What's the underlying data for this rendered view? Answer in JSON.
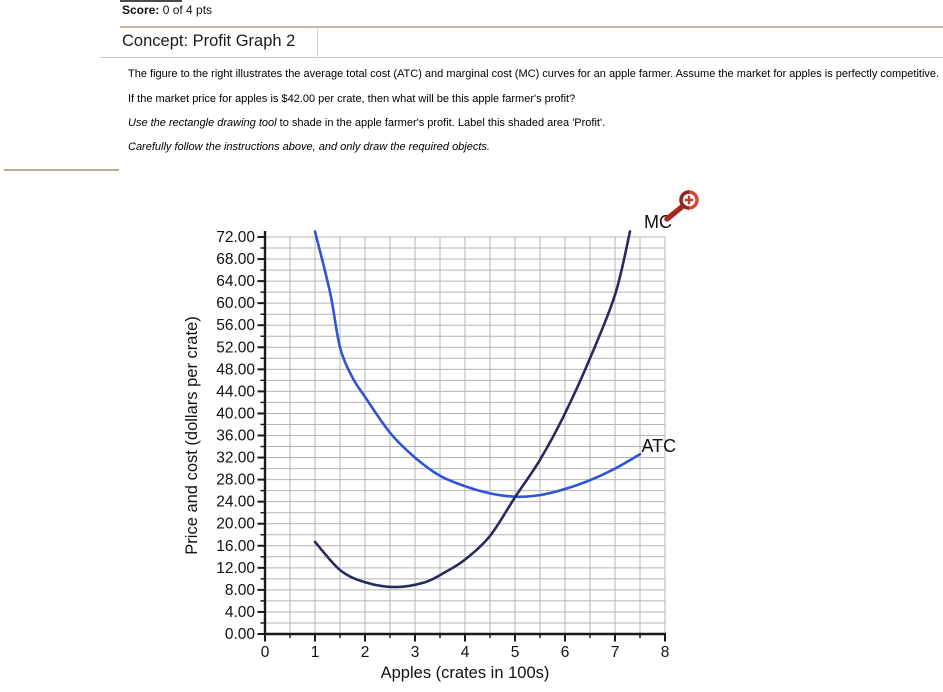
{
  "header": {
    "score_label": "Score:",
    "score_value": " 0 of 4 pts",
    "concept_title": "Concept: Profit Graph 2"
  },
  "question": {
    "line1": "The figure to the right illustrates the average total cost (ATC) and marginal cost (MC) curves for an apple farmer. Assume the market for apples is perfectly competitive.",
    "line2": "If the market price for apples is $42.00 per crate, then what will be this apple farmer's profit?",
    "line3_italic": "Use the rectangle drawing tool",
    "line3_rest": " to shade in the apple farmer's profit. Label this shaded area 'Profit'.",
    "line4": "Carefully follow the instructions above, and only draw the required objects."
  },
  "chart_data": {
    "type": "line",
    "title": "",
    "xlabel": "Apples (crates in 100s)",
    "ylabel": "Price and cost (dollars per crate)",
    "xlim": [
      0,
      8
    ],
    "ylim": [
      0,
      72
    ],
    "x_major_step": 1,
    "x_minor_step": 0.5,
    "y_major_step": 4,
    "y_minor_step": 2,
    "y_tick_decimals": 2,
    "grid": true,
    "legend_position": "none",
    "colors": {
      "grid": "#b4b4b4",
      "axis": "#1a1a1a",
      "tick_label": "#111111",
      "curve_label": "#111111"
    },
    "series": [
      {
        "name": "ATC",
        "color": "#2d55d4",
        "label": {
          "text": "ATC",
          "x": 7.53,
          "y": 33.0
        },
        "points": [
          [
            1.0,
            73
          ],
          [
            1.3,
            62
          ],
          [
            1.5,
            52
          ],
          [
            1.75,
            46.5
          ],
          [
            2,
            43
          ],
          [
            2.5,
            36.5
          ],
          [
            3,
            32
          ],
          [
            3.5,
            28.7
          ],
          [
            4,
            26.8
          ],
          [
            4.5,
            25.5
          ],
          [
            5,
            24.9
          ],
          [
            5.5,
            25.2
          ],
          [
            6,
            26.3
          ],
          [
            6.5,
            27.9
          ],
          [
            7,
            30.0
          ],
          [
            7.5,
            32.6
          ]
        ]
      },
      {
        "name": "MC",
        "color": "#272b5e",
        "label": {
          "text": "MC",
          "x": 7.58,
          "y": 73.6
        },
        "points": [
          [
            1,
            16.7
          ],
          [
            1.5,
            11.6
          ],
          [
            2,
            9.4
          ],
          [
            2.6,
            8.5
          ],
          [
            3.2,
            9.4
          ],
          [
            3.6,
            11.2
          ],
          [
            4,
            13.5
          ],
          [
            4.5,
            17.8
          ],
          [
            5,
            24.8
          ],
          [
            5.5,
            31.6
          ],
          [
            6,
            40
          ],
          [
            6.5,
            50
          ],
          [
            7,
            61.5
          ],
          [
            7.3,
            73
          ]
        ]
      }
    ],
    "zoom_icon": {
      "name": "zoom-in",
      "rim_color": "#d5452f",
      "rim_shade_color": "#93261a",
      "plus_color": "#c0392b",
      "handle_color": "#a62b1d"
    }
  }
}
